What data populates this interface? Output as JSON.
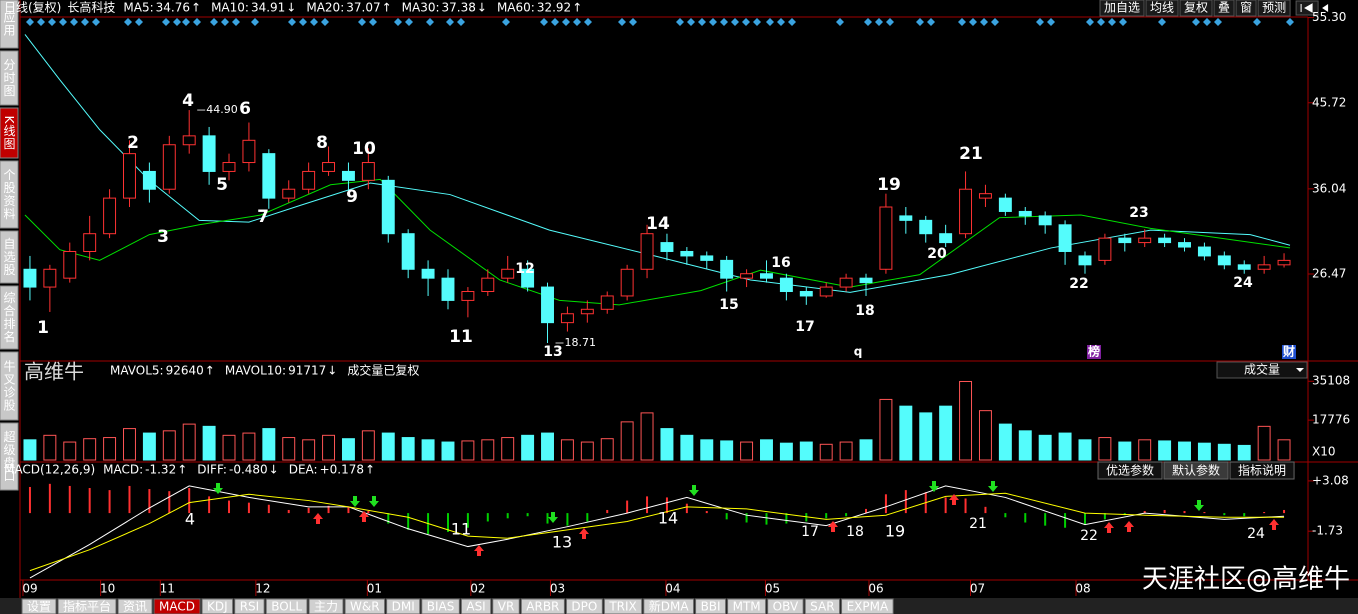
{
  "sidebar": [
    "应用",
    "分时图",
    "K线图",
    "个股资料",
    "自选股",
    "综合排名",
    "牛叉诊股",
    "超级盘口"
  ],
  "toolbar": [
    "加自选",
    "均线",
    "复权",
    "叠",
    "窗",
    "预测"
  ],
  "header": {
    "period": "日线(复权)",
    "stock": "长高科技",
    "ma": [
      {
        "label": "MA5:",
        "value": 34.76,
        "arrow": "↑",
        "color": "#ffffff"
      },
      {
        "label": "MA10:",
        "value": 34.91,
        "arrow": "↓",
        "color": "#ffff00"
      },
      {
        "label": "MA20:",
        "value": 37.07,
        "arrow": "↑",
        "color": "#ff40ff"
      },
      {
        "label": "MA30:",
        "value": 37.38,
        "arrow": "↓",
        "color": "#00e000"
      },
      {
        "label": "MA60:",
        "value": 32.92,
        "arrow": "↑",
        "color": "#54fcfc"
      }
    ]
  },
  "chart_data": [
    {
      "type": "candlestick",
      "up_color": "#ff3232",
      "down_color": "#54fcfc",
      "x": [
        0,
        1,
        2,
        3,
        4,
        5,
        6,
        7,
        8,
        9,
        10,
        11,
        12,
        13,
        14,
        15,
        16,
        17,
        18,
        19,
        20,
        21,
        22,
        23,
        24,
        25,
        26,
        27,
        28,
        29,
        30,
        31,
        32,
        33,
        34,
        35,
        36,
        37,
        38,
        39,
        40,
        41,
        42,
        43,
        44,
        45,
        46,
        47,
        48,
        49,
        50,
        51,
        52,
        53,
        54,
        55,
        56,
        57,
        58,
        59,
        60,
        61,
        62,
        63
      ],
      "open": [
        27,
        25,
        26,
        29,
        31,
        35,
        38,
        36,
        41,
        42,
        38,
        39,
        40,
        35,
        36,
        38,
        38,
        37,
        37,
        31,
        27,
        26,
        23.5,
        24.5,
        26,
        27,
        25,
        21,
        22,
        22.5,
        24,
        27,
        30,
        29,
        28.5,
        28,
        26,
        26.5,
        26,
        24.5,
        24,
        25,
        26,
        27,
        33,
        32.5,
        31,
        31,
        35,
        35,
        33.5,
        33,
        32,
        28.5,
        28,
        30.5,
        30,
        30.5,
        30,
        29.5,
        28.5,
        27.5,
        27,
        27.5
      ],
      "close": [
        25,
        27,
        29,
        31,
        35,
        40,
        36,
        41,
        42,
        38,
        39,
        41.5,
        35,
        36,
        38,
        39,
        37,
        39,
        31,
        27,
        26,
        23.5,
        24.5,
        26,
        27,
        25,
        21,
        22,
        22.5,
        24,
        27,
        31,
        29,
        28.5,
        28,
        26,
        26.5,
        26,
        24.5,
        24,
        25,
        26,
        25.5,
        34,
        32.5,
        31,
        30,
        36,
        35.5,
        33.5,
        33,
        32,
        29,
        27.5,
        30.5,
        30,
        30.5,
        30,
        29.5,
        28.5,
        27.5,
        27,
        27.5,
        28
      ],
      "high": [
        28.5,
        27.5,
        30,
        33,
        36,
        41.5,
        39,
        42,
        44.9,
        43,
        40,
        43.5,
        40.5,
        37,
        39,
        40.8,
        39,
        40.6,
        37.5,
        31.5,
        28,
        27,
        25,
        27,
        28.5,
        28,
        25.5,
        22.8,
        23.5,
        24.5,
        27.5,
        32,
        31,
        29.5,
        29,
        28.5,
        27,
        28,
        26.5,
        25,
        25.5,
        26.5,
        26.5,
        35.5,
        34,
        33,
        32,
        38,
        36.5,
        35.5,
        34,
        33.5,
        32.5,
        29,
        31,
        31,
        31.5,
        31,
        30.5,
        30,
        29,
        28,
        28.5,
        28.8
      ],
      "low": [
        23.5,
        22.2,
        25.5,
        28,
        30.5,
        34,
        34.5,
        35.5,
        40,
        36.5,
        37,
        38,
        33.8,
        34.5,
        35.5,
        37.5,
        35.5,
        36,
        30,
        26,
        24,
        22.5,
        21.6,
        24,
        25.5,
        24.5,
        18.71,
        20,
        21,
        22,
        23.5,
        26,
        28,
        27.5,
        27,
        24.5,
        25,
        25.5,
        23.5,
        23,
        23.8,
        24.5,
        24,
        26.5,
        31,
        30,
        29.5,
        30.5,
        34,
        33,
        32,
        31,
        27.5,
        26.5,
        27.5,
        29,
        29.5,
        29.5,
        29,
        28,
        27,
        26.5,
        26.5,
        27.2
      ],
      "xlim": [
        -0.5,
        63.5
      ],
      "ylim": [
        16.8,
        55.7
      ],
      "yticks": [
        {
          "value": 55.3,
          "label": "55.30"
        },
        45.72,
        36.04,
        26.47
      ],
      "lines": [
        {
          "color": "#54fcfc",
          "x": [
            -0.25,
            1.5,
            3.5,
            6,
            8.5,
            11,
            13.6,
            17.1,
            21.1,
            26.1,
            31.2,
            36.2,
            41.2,
            46.2,
            51.3,
            56.3,
            61.3,
            63.3
          ],
          "values": [
            53.4,
            48.3,
            42.7,
            37,
            32.5,
            32.3,
            34.2,
            36.7,
            35.4,
            31.4,
            28.6,
            25.8,
            24.4,
            26.4,
            29.4,
            31.4,
            30.9,
            29.7
          ]
        },
        {
          "color": "#00e000",
          "x": [
            -0.25,
            1.5,
            3.5,
            6,
            8.5,
            11.6,
            15.1,
            17.6,
            20.1,
            23.6,
            26.6,
            29.6,
            33.7,
            36.7,
            41.2,
            44.7,
            48.7,
            52.8,
            56.3,
            63.3
          ],
          "values": [
            33.1,
            29.2,
            28,
            30.9,
            32,
            33.1,
            36.5,
            37.1,
            31.4,
            25.8,
            23.5,
            23,
            24.6,
            26.9,
            25,
            26.4,
            32.8,
            33.1,
            31.6,
            29.4
          ]
        }
      ],
      "price_labels": [
        {
          "value": 44.9,
          "label": "44.90"
        },
        {
          "value": 18.71,
          "label": "18.71"
        }
      ],
      "annotations": [
        "1",
        "2",
        "3",
        "4",
        "5",
        "6",
        "7",
        "8",
        "9",
        "10",
        "11",
        "12",
        "13",
        "14",
        "15",
        "16",
        "17",
        "18",
        "19",
        "20",
        "21",
        "22",
        "23",
        "24"
      ],
      "markers": [
        "q",
        "榜",
        "财"
      ]
    },
    {
      "type": "volume",
      "header": [
        {
          "label": "MAVOL5:",
          "value": 92640,
          "arrow": "↑",
          "color": "#ffff00"
        },
        {
          "label": "MAVOL10:",
          "value": 91717,
          "arrow": "↓",
          "color": "#ffffff"
        }
      ],
      "note": "成交量已复权",
      "selector": "成交量",
      "unit": "X10",
      "watermark": "高维牛",
      "values": [
        9000,
        11000,
        8000,
        9500,
        10000,
        14000,
        12000,
        13000,
        16000,
        15000,
        11000,
        12000,
        14000,
        10000,
        9000,
        11000,
        9500,
        13000,
        12000,
        10000,
        9000,
        8000,
        8500,
        9000,
        10000,
        11000,
        12000,
        9000,
        8000,
        9500,
        17000,
        21000,
        14000,
        11000,
        9000,
        8500,
        8000,
        9000,
        7500,
        8000,
        7000,
        8000,
        9000,
        27000,
        24000,
        21000,
        24000,
        35000,
        22000,
        16000,
        13000,
        11000,
        12000,
        9000,
        10000,
        8000,
        9000,
        8500,
        8000,
        7500,
        7000,
        6500,
        15000,
        9000
      ],
      "xlim": [
        -0.5,
        63.5
      ],
      "ylim": [
        0,
        37000
      ],
      "yticks": [
        35108,
        17776
      ]
    },
    {
      "type": "macd",
      "title": "MACD(12,26,9)",
      "header": [
        {
          "label": "MACD:",
          "value": -1.32,
          "arrow": "↑",
          "color": "#ffff00"
        },
        {
          "label": "DIFF:",
          "value": -0.48,
          "value_label": "-0.480",
          "arrow": "↓",
          "color": "#ffffff"
        },
        {
          "label": "DEA:",
          "value": 0.178,
          "value_label": "+0.178",
          "arrow": "↑",
          "color": "#ffff00"
        }
      ],
      "buttons": [
        "优选参数",
        "默认参数",
        "指标说明"
      ],
      "values": [
        2.5,
        2.8,
        2.6,
        2.4,
        2.2,
        2.6,
        2.3,
        2.1,
        2.4,
        1.6,
        1.2,
        1,
        0.8,
        0.3,
        0.5,
        0.7,
        0.6,
        0.2,
        -1,
        -1.6,
        -2,
        -1.8,
        -1.4,
        -0.8,
        -0.5,
        -0.3,
        -1,
        -1.2,
        -0.8,
        0.3,
        1.2,
        1.6,
        1.5,
        0.9,
        0.2,
        -0.6,
        -0.9,
        -1.1,
        -1,
        -0.8,
        -0.5,
        -0.3,
        0.4,
        1.8,
        2.2,
        2,
        1.5,
        1.4,
        0.6,
        -0.4,
        -0.9,
        -1.2,
        -1.4,
        -1.1,
        -0.6,
        -0.2,
        0.2,
        0.3,
        0.2,
        0.1,
        -0.2,
        -0.3,
        0.1,
        0.3
      ],
      "lines": [
        {
          "color": "#ffffff",
          "x": [
            0,
            3,
            6,
            8,
            11,
            14,
            16,
            19,
            22,
            24,
            27,
            30,
            33,
            36,
            40,
            43,
            46,
            49,
            53,
            56,
            60,
            63
          ],
          "values": [
            -6.2,
            -3,
            0.5,
            2.6,
            1.5,
            0.6,
            0.6,
            -1.5,
            -3.2,
            -2.5,
            -1.3,
            0,
            1.5,
            -0.2,
            -1.2,
            0.6,
            2.6,
            1.5,
            -1.1,
            0,
            -0.6,
            -0.3
          ]
        },
        {
          "color": "#ffff00",
          "x": [
            0,
            3,
            6,
            8,
            11,
            14,
            16,
            19,
            22,
            24,
            27,
            30,
            33,
            36,
            40,
            43,
            46,
            49,
            53,
            56,
            60,
            63
          ],
          "values": [
            -5.5,
            -3.5,
            -1,
            1,
            1.8,
            1.2,
            0.6,
            -0.4,
            -2.2,
            -2.4,
            -1.6,
            -0.8,
            0.6,
            0.4,
            -0.6,
            -0.2,
            1.6,
            1.9,
            0,
            -0.2,
            -0.4,
            -0.4
          ]
        }
      ],
      "annotations": [
        "4",
        "11",
        "13",
        "14",
        "17",
        "18",
        "19",
        "21",
        "22",
        "24"
      ],
      "xlim": [
        -0.5,
        63.5
      ],
      "ylim": [
        -6.4,
        3.55
      ],
      "yticks": [
        {
          "value": 3.08,
          "label": "+3.08"
        },
        -1.73
      ],
      "xticks": [
        {
          "value": 0,
          "label": "09"
        },
        {
          "value": 3.9,
          "label": "10"
        },
        {
          "value": 6.9,
          "label": "11"
        },
        {
          "value": 11.7,
          "label": "12"
        },
        {
          "value": 17.3,
          "label": "01"
        },
        {
          "value": 22.5,
          "label": "02"
        },
        {
          "value": 26.5,
          "label": "03"
        },
        {
          "value": 32.3,
          "label": "04"
        },
        {
          "value": 37.3,
          "label": "05"
        },
        {
          "value": 42.5,
          "label": "06"
        },
        {
          "value": 47.6,
          "label": "07"
        },
        {
          "value": 52.9,
          "label": "08"
        }
      ]
    }
  ],
  "tabs": [
    "设置",
    "指标平台",
    "资讯",
    "MACD",
    "KDJ",
    "RSI",
    "BOLL",
    "主力",
    "W&R",
    "DMI",
    "BIAS",
    "ASI",
    "VR",
    "ARBR",
    "DPO",
    "TRIX",
    "新DMA",
    "BBI",
    "MTM",
    "OBV",
    "SAR",
    "EXPMA"
  ],
  "watermark": "天涯社区@高维牛"
}
